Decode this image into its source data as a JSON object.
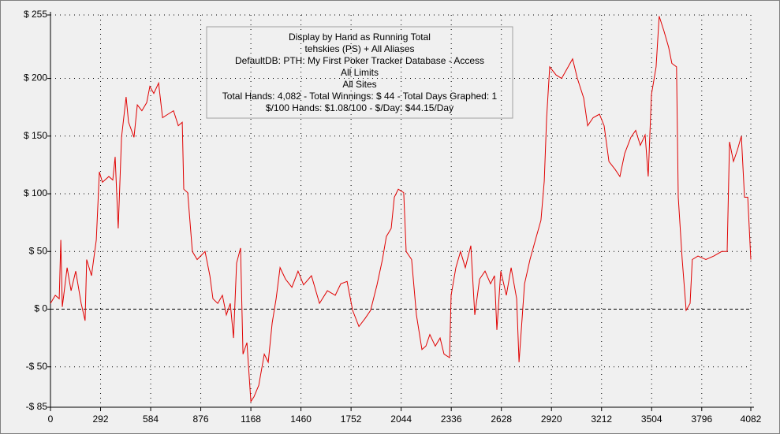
{
  "chart_data": {
    "type": "line",
    "annotations": [
      "Display by Hand as Running Total",
      "tehskies (PS) + All Aliases",
      "DefaultDB: PTH: My First Poker Tracker Database - Access",
      "All Limits",
      "All Sites",
      "Total Hands: 4,082 - Total Winnings: $ 44 - Total Days Graphed: 1",
      "$/100 Hands: $1.08/100 - $/Day: $44.15/Day"
    ],
    "color": "#e00000",
    "grid": true,
    "xlim": [
      0,
      4082
    ],
    "xticks": [
      0,
      292,
      584,
      876,
      1168,
      1460,
      1752,
      2044,
      2336,
      2628,
      2920,
      3212,
      3504,
      3796,
      4082
    ],
    "ylim": [
      -85,
      255
    ],
    "yticks": [
      {
        "value": -85,
        "label": "-$ 85"
      },
      {
        "value": -50,
        "label": "-$ 50"
      },
      {
        "value": 0,
        "label": "$ 0"
      },
      {
        "value": 50,
        "label": "$ 50"
      },
      {
        "value": 100,
        "label": "$ 100"
      },
      {
        "value": 150,
        "label": "$ 150"
      },
      {
        "value": 200,
        "label": "$ 200"
      },
      {
        "value": 255,
        "label": "$ 255"
      }
    ],
    "x": [
      0,
      28,
      51,
      60,
      69,
      97,
      120,
      147,
      179,
      202,
      211,
      239,
      267,
      285,
      303,
      340,
      363,
      377,
      395,
      414,
      441,
      455,
      487,
      506,
      533,
      561,
      579,
      602,
      630,
      653,
      685,
      717,
      745,
      768,
      777,
      800,
      827,
      855,
      901,
      929,
      947,
      975,
      1002,
      1025,
      1048,
      1067,
      1085,
      1108,
      1122,
      1145,
      1168,
      1186,
      1214,
      1246,
      1269,
      1292,
      1315,
      1338,
      1370,
      1407,
      1443,
      1475,
      1521,
      1568,
      1614,
      1660,
      1692,
      1729,
      1761,
      1798,
      1834,
      1866,
      1903,
      1935,
      1958,
      1986,
      2004,
      2027,
      2059,
      2073,
      2105,
      2133,
      2165,
      2188,
      2211,
      2243,
      2271,
      2294,
      2326,
      2335,
      2363,
      2390,
      2418,
      2450,
      2473,
      2501,
      2533,
      2565,
      2588,
      2602,
      2625,
      2657,
      2685,
      2717,
      2731,
      2763,
      2795,
      2832,
      2859,
      2878,
      2892,
      2910,
      2947,
      2979,
      3006,
      3043,
      3071,
      3108,
      3131,
      3163,
      3200,
      3227,
      3255,
      3292,
      3319,
      3347,
      3383,
      3411,
      3438,
      3466,
      3484,
      3503,
      3530,
      3548,
      3576,
      3603,
      3622,
      3649,
      3659,
      3682,
      3705,
      3728,
      3741,
      3774,
      3820,
      3866,
      3912,
      3944,
      3958,
      3981,
      4004,
      4027,
      4045,
      4064,
      4082
    ],
    "values": [
      5,
      12,
      9,
      60,
      2,
      36,
      16,
      33,
      5,
      -10,
      43,
      29,
      60,
      119,
      110,
      115,
      112,
      132,
      70,
      149,
      184,
      162,
      149,
      177,
      172,
      179,
      193,
      187,
      196,
      166,
      169,
      172,
      159,
      162,
      104,
      101,
      50,
      43,
      50,
      29,
      9,
      5,
      12,
      -5,
      5,
      -25,
      40,
      53,
      -39,
      -29,
      -80,
      -76,
      -66,
      -39,
      -46,
      -12,
      9,
      36,
      26,
      19,
      33,
      21,
      29,
      5,
      16,
      12,
      22,
      24,
      -1,
      -15,
      -8,
      -1,
      21,
      43,
      63,
      70,
      97,
      104,
      101,
      50,
      43,
      -5,
      -35,
      -32,
      -22,
      -32,
      -25,
      -39,
      -42,
      12,
      36,
      50,
      36,
      55,
      -5,
      26,
      33,
      22,
      29,
      -18,
      33,
      12,
      36,
      9,
      -46,
      22,
      43,
      63,
      77,
      111,
      166,
      210,
      203,
      200,
      207,
      217,
      200,
      183,
      159,
      166,
      169,
      159,
      128,
      121,
      115,
      135,
      149,
      155,
      142,
      151,
      115,
      186,
      210,
      254,
      241,
      227,
      213,
      210,
      97,
      43,
      -1,
      5,
      43,
      46,
      43,
      46,
      50,
      50,
      145,
      128,
      138,
      150,
      97,
      97,
      43
    ]
  }
}
